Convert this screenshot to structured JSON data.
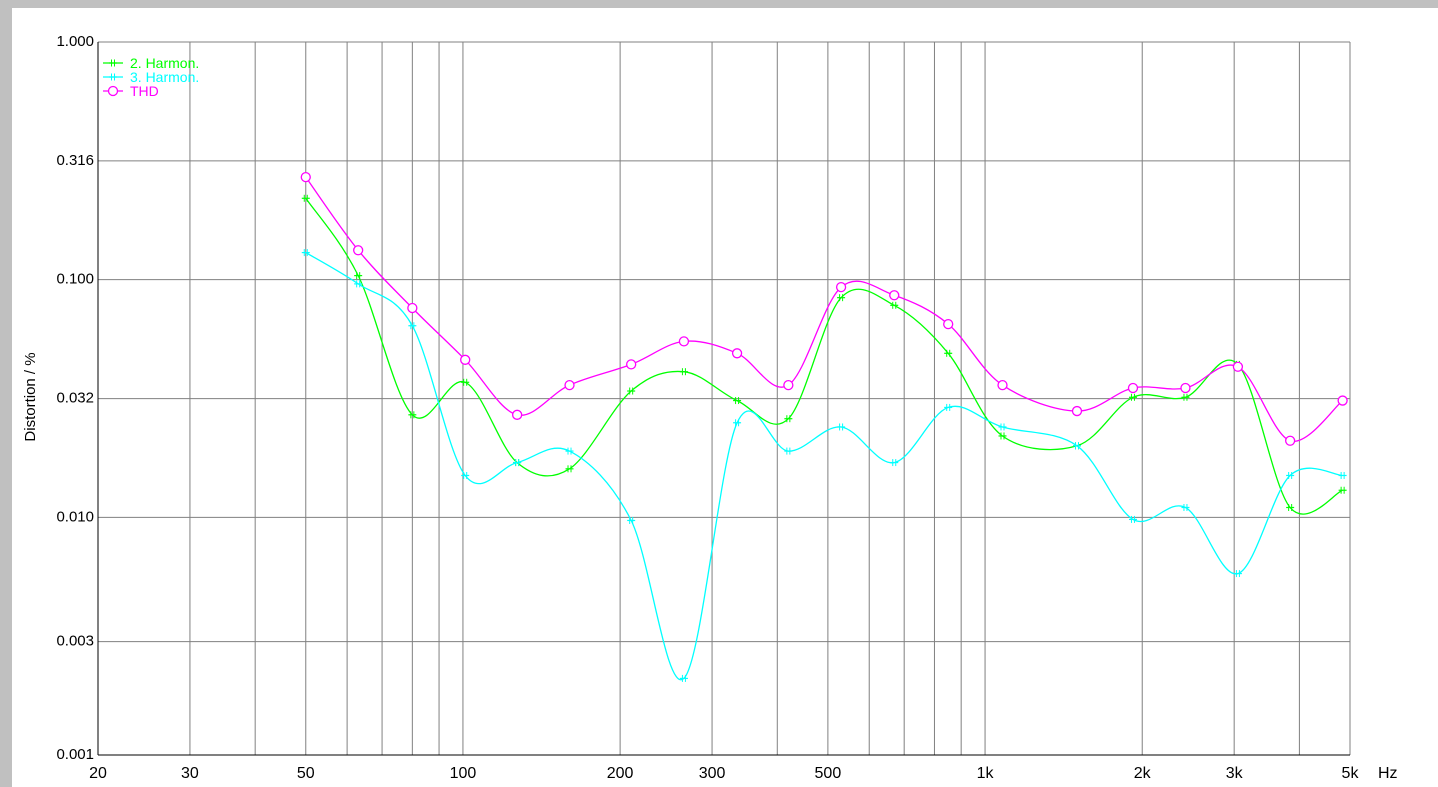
{
  "chart_data": {
    "type": "line",
    "xlabel": "",
    "x_unit": "Hz",
    "ylabel": "Distortion / %",
    "x_scale": "log",
    "y_scale": "log",
    "xlim": [
      20,
      5000
    ],
    "ylim": [
      0.001,
      1.0
    ],
    "x_ticks": [
      {
        "value": 20,
        "label": "20"
      },
      {
        "value": 30,
        "label": "30"
      },
      {
        "value": 50,
        "label": "50"
      },
      {
        "value": 100,
        "label": "100"
      },
      {
        "value": 200,
        "label": "200"
      },
      {
        "value": 300,
        "label": "300"
      },
      {
        "value": 500,
        "label": "500"
      },
      {
        "value": 1000,
        "label": "1k"
      },
      {
        "value": 2000,
        "label": "2k"
      },
      {
        "value": 3000,
        "label": "3k"
      },
      {
        "value": 5000,
        "label": "5k"
      }
    ],
    "y_ticks": [
      {
        "value": 0.001,
        "label": "0.001"
      },
      {
        "value": 0.003,
        "label": "0.003"
      },
      {
        "value": 0.01,
        "label": "0.010"
      },
      {
        "value": 0.0316,
        "label": "0.032"
      },
      {
        "value": 0.1,
        "label": "0.100"
      },
      {
        "value": 0.316,
        "label": "0.316"
      },
      {
        "value": 1.0,
        "label": "1.000"
      }
    ],
    "grid": true,
    "legend_position": "top-left",
    "series": [
      {
        "name": "2. Harmon.",
        "color": "#00ff00",
        "marker": "tick",
        "x": [
          50,
          63,
          80,
          101,
          127,
          160,
          210,
          265,
          335,
          420,
          530,
          670,
          850,
          1080,
          1500,
          1920,
          2420,
          3050,
          3840,
          4840
        ],
        "y": [
          0.22,
          0.104,
          0.027,
          0.037,
          0.017,
          0.016,
          0.034,
          0.041,
          0.031,
          0.026,
          0.084,
          0.078,
          0.049,
          0.022,
          0.02,
          0.032,
          0.032,
          0.044,
          0.011,
          0.013
        ]
      },
      {
        "name": "3. Harmon.",
        "color": "#00ffff",
        "marker": "tick",
        "x": [
          50,
          63,
          80,
          101,
          127,
          160,
          210,
          265,
          335,
          420,
          530,
          670,
          850,
          1080,
          1500,
          1920,
          2420,
          3050,
          3840,
          4840
        ],
        "y": [
          0.13,
          0.096,
          0.064,
          0.015,
          0.017,
          0.019,
          0.0097,
          0.0021,
          0.025,
          0.019,
          0.024,
          0.017,
          0.029,
          0.024,
          0.02,
          0.0098,
          0.011,
          0.0058,
          0.015,
          0.015
        ]
      },
      {
        "name": "THD",
        "color": "#ff00ff",
        "marker": "circle",
        "x": [
          50,
          63,
          80,
          101,
          127,
          160,
          210,
          265,
          335,
          420,
          530,
          670,
          850,
          1080,
          1500,
          1920,
          2420,
          3050,
          3840,
          4840
        ],
        "y": [
          0.27,
          0.133,
          0.076,
          0.046,
          0.027,
          0.036,
          0.044,
          0.055,
          0.049,
          0.036,
          0.093,
          0.086,
          0.065,
          0.036,
          0.028,
          0.035,
          0.035,
          0.043,
          0.021,
          0.031
        ]
      }
    ]
  }
}
